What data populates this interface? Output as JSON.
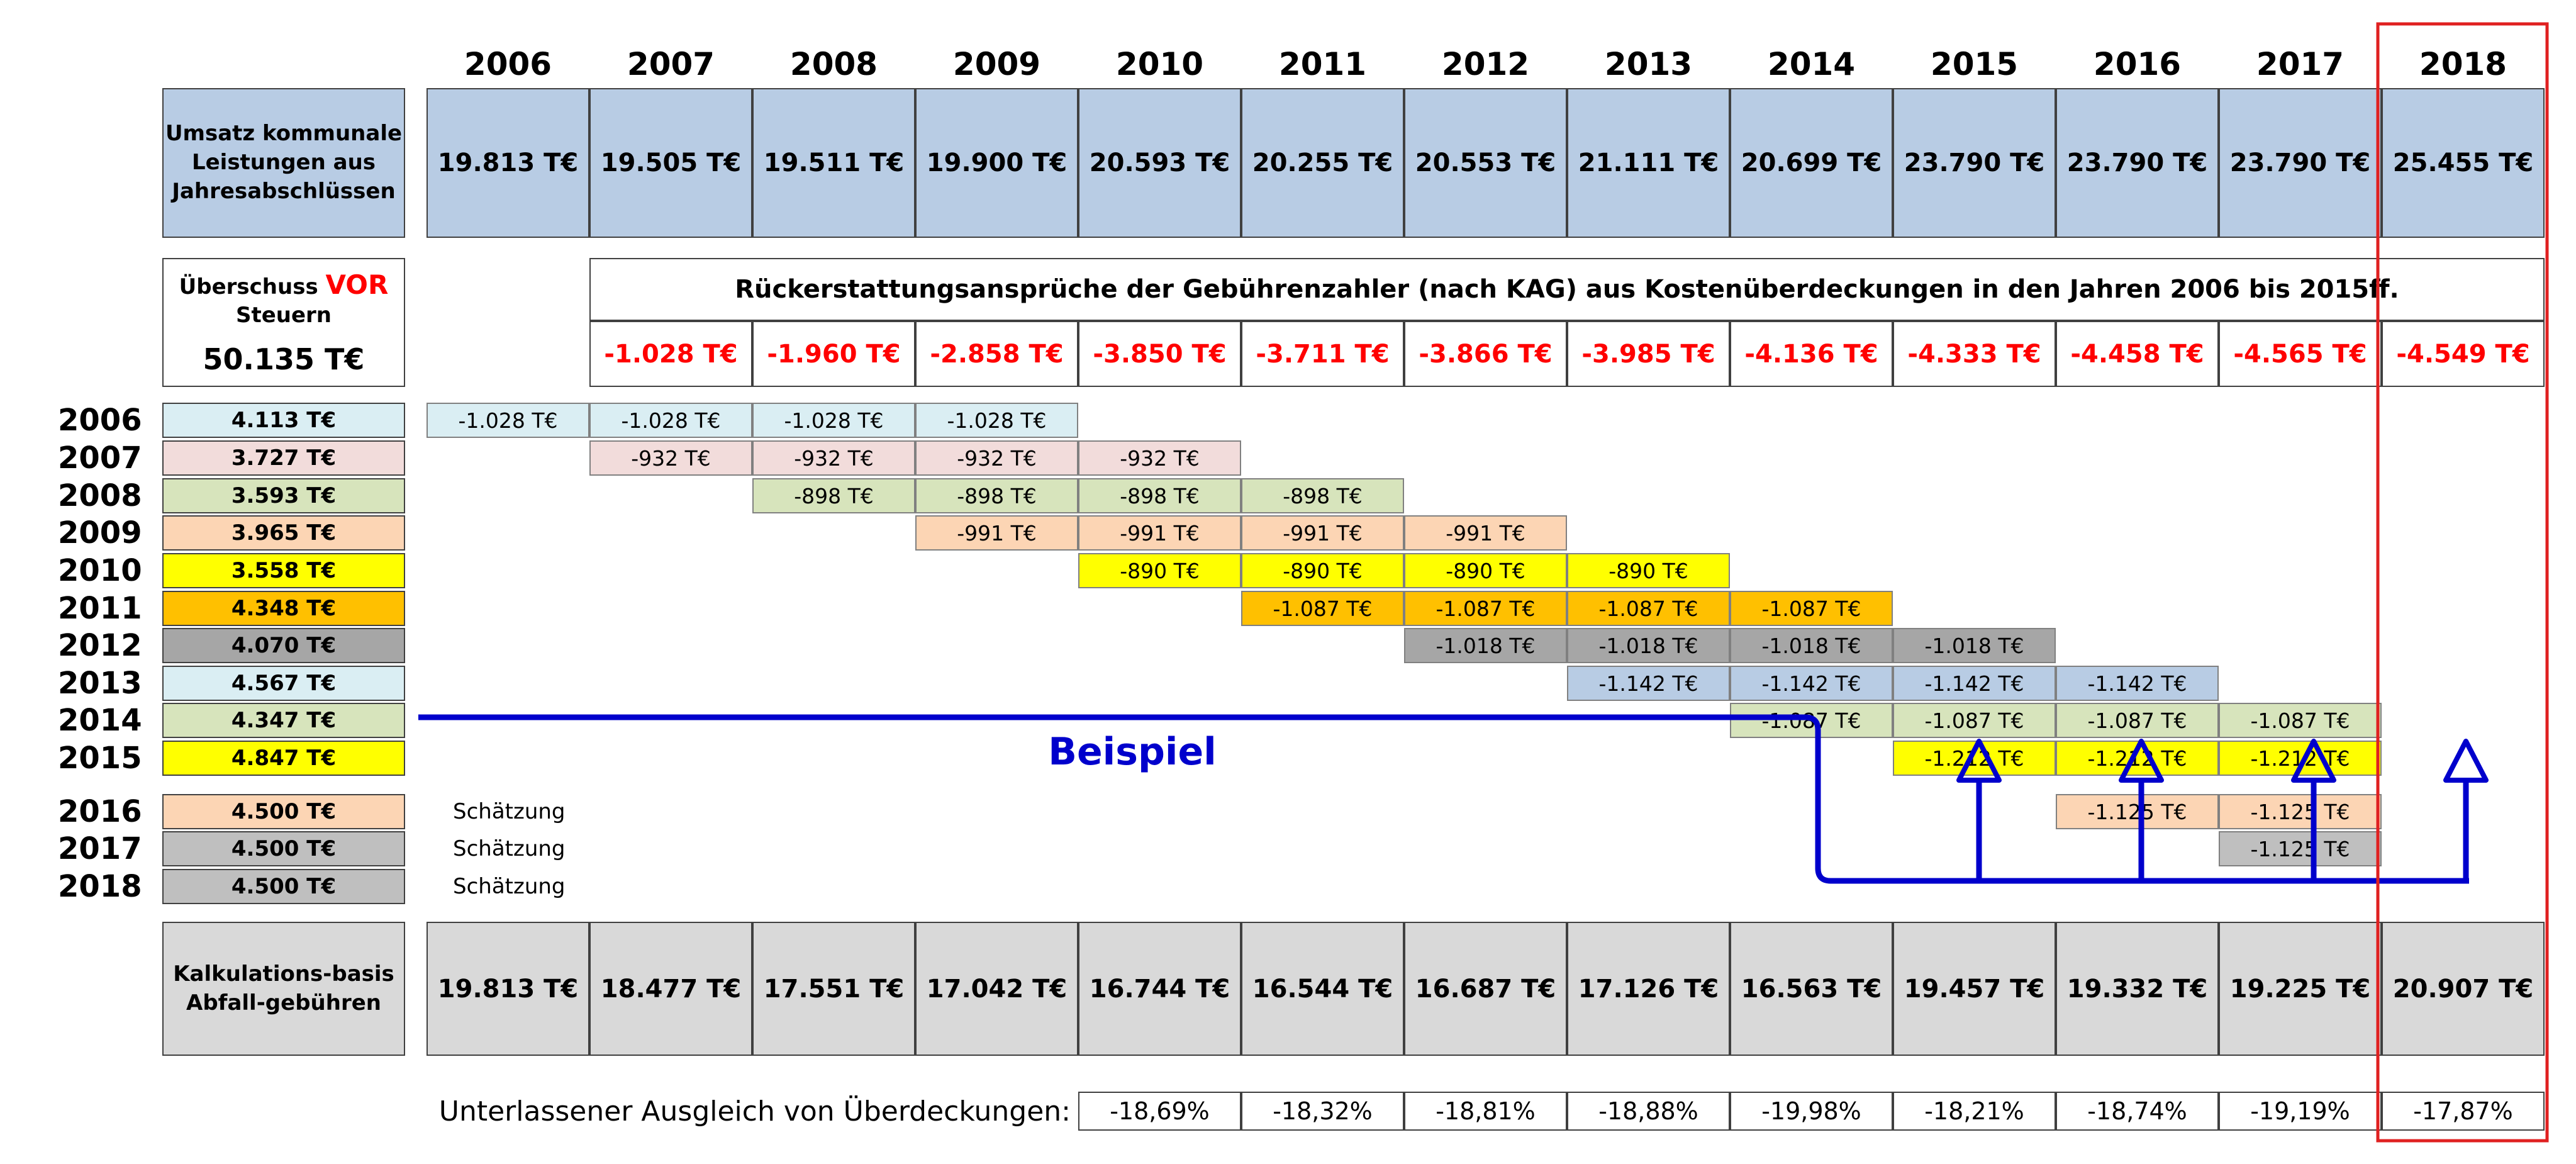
{
  "chart_data": {
    "type": "table",
    "years": [
      "2006",
      "2007",
      "2008",
      "2009",
      "2010",
      "2011",
      "2012",
      "2013",
      "2014",
      "2015",
      "2016",
      "2017",
      "2018"
    ],
    "umsatz": {
      "label": "Umsatz kommunale Leistungen aus Jahresabschlüssen",
      "values": [
        "19.813 T€",
        "19.505 T€",
        "19.511 T€",
        "19.900 T€",
        "20.593 T€",
        "20.255 T€",
        "20.553 T€",
        "21.111 T€",
        "20.699 T€",
        "23.790 T€",
        "23.790 T€",
        "23.790 T€",
        "25.455 T€"
      ]
    },
    "ueberschuss": {
      "label_pre": "Überschuss",
      "label_emph": "VOR",
      "label_post": "Steuern",
      "value": "50.135 T€"
    },
    "rueckerstattung": {
      "title": "Rückerstattungsansprüche der Gebührenzahler (nach KAG) aus Kostenüberdeckungen in den Jahren 2006 bis 2015ff.",
      "totals": [
        "-1.028 T€",
        "-1.960 T€",
        "-2.858 T€",
        "-3.850 T€",
        "-3.711 T€",
        "-3.866 T€",
        "-3.985 T€",
        "-4.136 T€",
        "-4.333 T€",
        "-4.458 T€",
        "-4.565 T€",
        "-4.549 T€"
      ]
    },
    "rows": [
      {
        "year": "2006",
        "value": "4.113 T€",
        "color": "#daeef3",
        "start": 1,
        "cells": [
          "-1.028 T€",
          "-1.028 T€",
          "-1.028 T€",
          "-1.028 T€"
        ]
      },
      {
        "year": "2007",
        "value": "3.727 T€",
        "color": "#f2dcdb",
        "start": 2,
        "cells": [
          "-932 T€",
          "-932 T€",
          "-932 T€",
          "-932 T€"
        ]
      },
      {
        "year": "2008",
        "value": "3.593 T€",
        "color": "#d7e4bc",
        "start": 3,
        "cells": [
          "-898 T€",
          "-898 T€",
          "-898 T€",
          "-898 T€"
        ]
      },
      {
        "year": "2009",
        "value": "3.965 T€",
        "color": "#fcd5b4",
        "start": 4,
        "cells": [
          "-991 T€",
          "-991 T€",
          "-991 T€",
          "-991 T€"
        ]
      },
      {
        "year": "2010",
        "value": "3.558 T€",
        "color": "#ffff00",
        "start": 5,
        "cells": [
          "-890 T€",
          "-890 T€",
          "-890 T€",
          "-890 T€"
        ]
      },
      {
        "year": "2011",
        "value": "4.348 T€",
        "color": "#ffc000",
        "start": 6,
        "cells": [
          "-1.087 T€",
          "-1.087 T€",
          "-1.087 T€",
          "-1.087 T€"
        ]
      },
      {
        "year": "2012",
        "value": "4.070 T€",
        "color": "#a6a6a6",
        "start": 7,
        "cells": [
          "-1.018 T€",
          "-1.018 T€",
          "-1.018 T€",
          "-1.018 T€"
        ]
      },
      {
        "year": "2013",
        "value": "4.567 T€",
        "color": "#daeef3",
        "cellColor": "#b8cce4",
        "start": 8,
        "cells": [
          "-1.142 T€",
          "-1.142 T€",
          "-1.142 T€",
          "-1.142 T€"
        ]
      },
      {
        "year": "2014",
        "value": "4.347 T€",
        "color": "#d7e4bc",
        "start": 9,
        "cells": [
          "-1.087 T€",
          "-1.087 T€",
          "-1.087 T€",
          "-1.087 T€"
        ]
      },
      {
        "year": "2015",
        "value": "4.847 T€",
        "color": "#ffff00",
        "start": 10,
        "cells": [
          "-1.212 T€",
          "-1.212 T€",
          "-1.212 T€"
        ]
      },
      {
        "year": "2016",
        "value": "4.500 T€",
        "color": "#fcd5b4",
        "note": "Schätzung",
        "start": 11,
        "cells": [
          "-1.125 T€",
          "-1.125 T€"
        ]
      },
      {
        "year": "2017",
        "value": "4.500 T€",
        "color": "#bfbfbf",
        "note": "Schätzung",
        "start": 12,
        "cells": [
          "-1.125 T€"
        ]
      },
      {
        "year": "2018",
        "value": "4.500 T€",
        "color": "#bfbfbf",
        "note": "Schätzung",
        "start": 13,
        "cells": []
      }
    ],
    "kalkulation": {
      "label": "Kalkulations-basis Abfall-gebühren",
      "values": [
        "19.813 T€",
        "18.477 T€",
        "17.551 T€",
        "17.042 T€",
        "16.744 T€",
        "16.544 T€",
        "16.687 T€",
        "17.126 T€",
        "16.563 T€",
        "19.457 T€",
        "19.332 T€",
        "19.225 T€",
        "20.907 T€"
      ]
    },
    "ausgleich": {
      "label": "Unterlassener Ausgleich von Überdeckungen:",
      "values": [
        "-18,69%",
        "-18,32%",
        "-18,81%",
        "-18,88%",
        "-19,98%",
        "-18,21%",
        "-18,74%",
        "-19,19%",
        "-17,87%"
      ]
    },
    "annotation": {
      "text": "Beispiel",
      "color": "#0000cc"
    },
    "highlight": {
      "year": "2018",
      "color": "#e02020"
    }
  }
}
